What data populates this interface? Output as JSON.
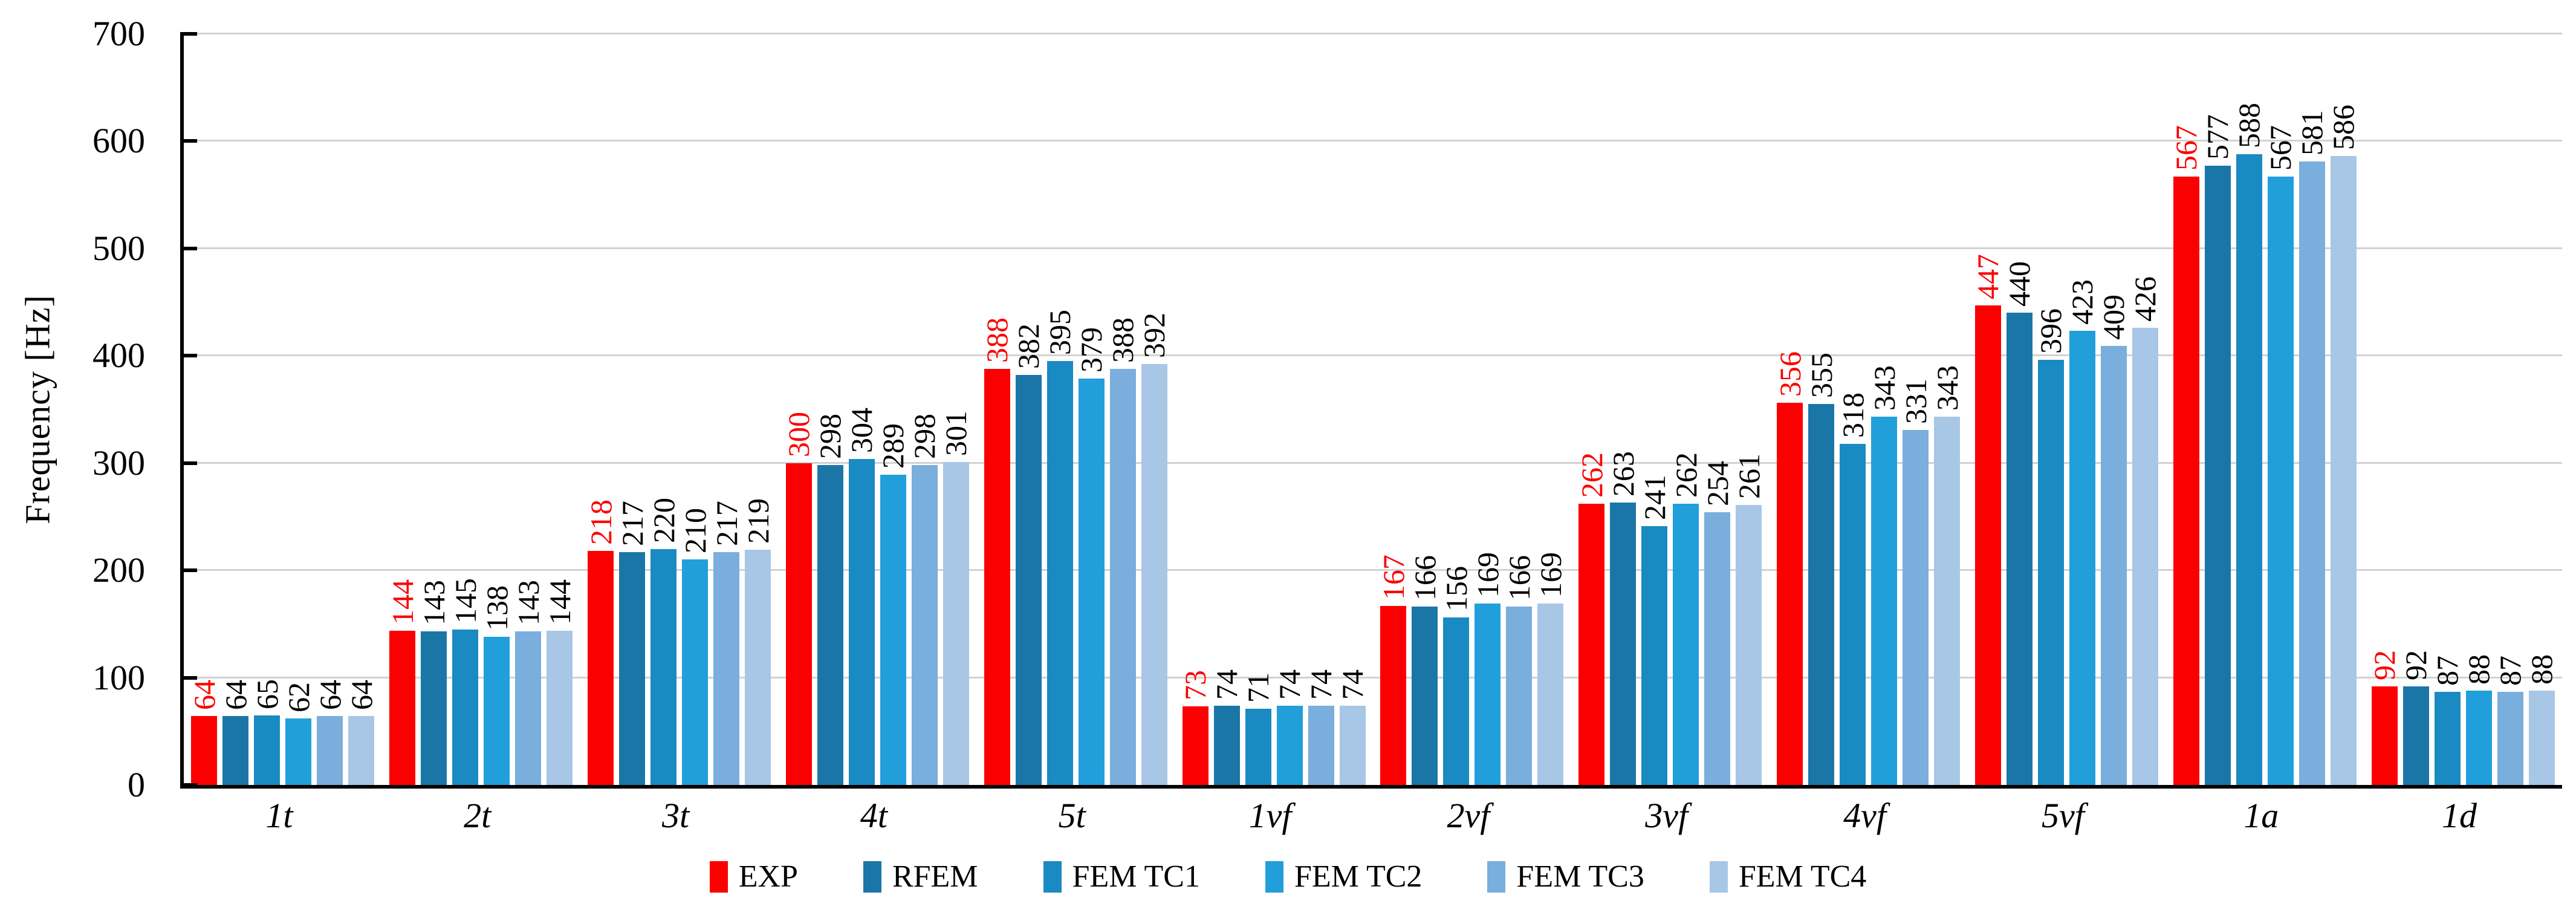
{
  "chart_data": {
    "type": "bar",
    "title": "",
    "xlabel": "",
    "ylabel": "Frequency [Hz]",
    "ylim": [
      0,
      700
    ],
    "ytick_interval": 100,
    "yticks": [
      0,
      100,
      200,
      300,
      400,
      500,
      600,
      700
    ],
    "grid": "horizontal-gridlines-on",
    "gridline_color": "#d2d2d2",
    "axis_color": "#000000",
    "value_label_style": "rotated 90deg, above bar",
    "exp_label_color": "#fb0000",
    "other_label_color": "#000000",
    "legend_position": "bottom-center",
    "categories": [
      "1t",
      "2t",
      "3t",
      "4t",
      "5t",
      "1vf",
      "2vf",
      "3vf",
      "4vf",
      "5vf",
      "1a",
      "1d"
    ],
    "series": [
      {
        "name": "EXP",
        "color": "#fb0000",
        "values": [
          64,
          144,
          218,
          300,
          388,
          73,
          167,
          262,
          356,
          447,
          567,
          92
        ]
      },
      {
        "name": "RFEM",
        "color": "#1b76a8",
        "values": [
          64,
          143,
          217,
          298,
          382,
          74,
          166,
          263,
          355,
          440,
          577,
          92
        ]
      },
      {
        "name": "FEM TC1",
        "color": "#1a8ac2",
        "values": [
          65,
          145,
          220,
          304,
          395,
          71,
          156,
          241,
          318,
          396,
          588,
          87
        ]
      },
      {
        "name": "FEM TC2",
        "color": "#219fdb",
        "values": [
          62,
          138,
          210,
          289,
          379,
          74,
          169,
          262,
          343,
          423,
          567,
          88
        ]
      },
      {
        "name": "FEM TC3",
        "color": "#7aaedc",
        "values": [
          64,
          143,
          217,
          298,
          388,
          74,
          166,
          254,
          331,
          409,
          581,
          87
        ]
      },
      {
        "name": "FEM TC4",
        "color": "#a8c6e6",
        "values": [
          64,
          144,
          219,
          301,
          392,
          74,
          169,
          261,
          343,
          426,
          586,
          88
        ]
      }
    ]
  }
}
